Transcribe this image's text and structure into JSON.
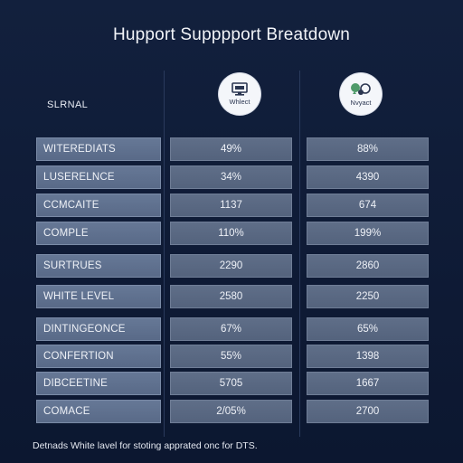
{
  "title": "Hupport Supppport Breatdown",
  "header": {
    "row_label": "SLRNAL",
    "columns": [
      {
        "logo_text": "Whlect",
        "icon": "monitor-icon"
      },
      {
        "logo_text": "Nvyact",
        "icon": "chat-people-icon"
      }
    ]
  },
  "rows": [
    {
      "label": "WITEREDIATS",
      "v1": "49%",
      "v2": "88%"
    },
    {
      "label": "LUSERELNCE",
      "v1": "34%",
      "v2": "4390"
    },
    {
      "label": "CCMCAITE",
      "v1": "1137",
      "v2": "674"
    },
    {
      "label": "COMPLE",
      "v1": "110%",
      "v2": "199%"
    },
    {
      "label": "SURTRUES",
      "v1": "2290",
      "v2": "2860"
    },
    {
      "label": "WHITE LEVEL",
      "v1": "2580",
      "v2": "2250"
    },
    {
      "label": "DINTINGEONCE",
      "v1": "67%",
      "v2": "65%"
    },
    {
      "label": "CONFERTION",
      "v1": "55%",
      "v2": "1398"
    },
    {
      "label": "DIBCEETINE",
      "v1": "5705",
      "v2": "1667"
    },
    {
      "label": "COMACE",
      "v1": "2/05%",
      "v2": "2700"
    }
  ],
  "footnote": "Detnads White lavel for stoting apprated onc for DTS.",
  "colors": {
    "background": "#0e1a33",
    "label_cell": "#5f7090",
    "value_cell": "#59687f"
  }
}
